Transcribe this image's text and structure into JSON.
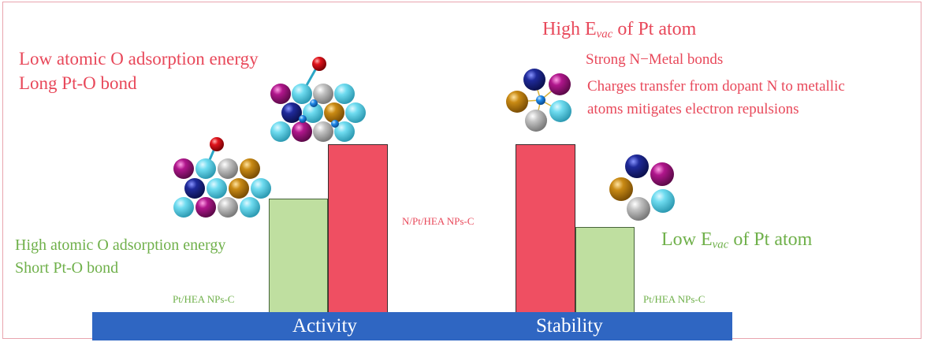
{
  "left_panel": {
    "red_text": {
      "line1": "Low atomic O adsorption energy",
      "line2": "Long Pt-O bond"
    },
    "green_text": {
      "line1": "High atomic O adsorption energy",
      "line2": "Short Pt-O bond"
    }
  },
  "right_panel": {
    "high_evac": {
      "prefix": "High E",
      "sub": "vac",
      "suffix": " of Pt atom"
    },
    "strong_bonds": "Strong N−Metal bonds",
    "charge_transfer": {
      "line1": "Charges transfer from dopant N to metallic",
      "line2": "atoms mitigates electron repulsions"
    },
    "low_evac": {
      "prefix": "Low E",
      "sub": "vac",
      "suffix": " of Pt atom"
    }
  },
  "bars": {
    "activity_pt_label": "Pt/HEA NPs-C",
    "activity_npt_label": "N/Pt/HEA NPs-C",
    "stability_pt_label": "Pt/HEA NPs-C"
  },
  "base": {
    "activity_label": "Activity",
    "stability_label": "Stability"
  },
  "colors": {
    "red_text": "#e8485a",
    "green_text": "#6fb04a",
    "red_bar": "#ef4f62",
    "green_bar": "#bfdfa0",
    "base_bar": "#2f66c2",
    "atom_cyan": "#5fd3ea",
    "atom_gray": "#b5b5b5",
    "atom_gold": "#c0800f",
    "atom_navy": "#1f2a8f",
    "atom_magenta": "#b0168c",
    "atom_red_oxygen": "#e0141c",
    "atom_blue_nitrogen": "#1e88e8"
  }
}
